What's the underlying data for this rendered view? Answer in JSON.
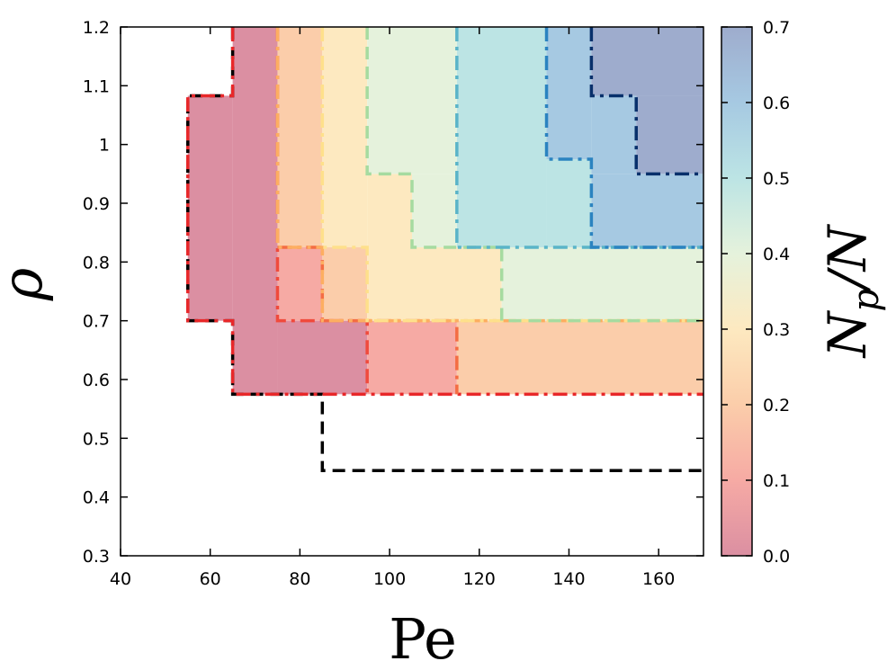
{
  "chart_data": {
    "type": "heatmap",
    "title": "",
    "xlabel": "Pe",
    "ylabel": "ρ",
    "colorbar_label": "N_p/N",
    "colorbar_label_main": "N",
    "colorbar_label_sub": "p",
    "colorbar_label_tail": "/N",
    "xlim": [
      40,
      170
    ],
    "ylim": [
      0.3,
      1.2
    ],
    "xticks": [
      40,
      60,
      80,
      100,
      120,
      140,
      160
    ],
    "xtick_labels": [
      "40",
      "60",
      "80",
      "100",
      "120",
      "140",
      "160"
    ],
    "yticks": [
      0.3,
      0.4,
      0.5,
      0.6,
      0.7,
      0.8,
      0.9,
      1.0,
      1.1,
      1.2
    ],
    "ytick_labels": [
      "0.3",
      "0.4",
      "0.5",
      "0.6",
      "0.7",
      "0.8",
      "0.9",
      "1",
      "1.1",
      "1.2"
    ],
    "clim": [
      0.0,
      0.7
    ],
    "cticks": [
      0.0,
      0.1,
      0.2,
      0.3,
      0.4,
      0.5,
      0.6,
      0.7
    ],
    "ctick_labels": [
      "0.0",
      "0.1",
      "0.2",
      "0.3",
      "0.4",
      "0.5",
      "0.6",
      "0.7"
    ],
    "colormap": [
      "#db8fa2",
      "#f6aaa4",
      "#fbcdaa",
      "#fde9c0",
      "#e5f2dc",
      "#bce4e4",
      "#a6c9e2",
      "#9eaccd"
    ],
    "cells": [
      {
        "x0": 55,
        "x1": 65,
        "y0": 0.7,
        "y1": 1.083,
        "value": 0.0
      },
      {
        "x0": 65,
        "x1": 75,
        "y0": 0.575,
        "y1": 1.2,
        "value": 0.0
      },
      {
        "x0": 75,
        "x1": 95,
        "y0": 0.575,
        "y1": 0.7,
        "value": 0.0
      },
      {
        "x0": 75,
        "x1": 85,
        "y0": 0.7,
        "y1": 0.825,
        "value": 0.1
      },
      {
        "x0": 95,
        "x1": 115,
        "y0": 0.575,
        "y1": 0.7,
        "value": 0.1
      },
      {
        "x0": 75,
        "x1": 85,
        "y0": 0.825,
        "y1": 1.2,
        "value": 0.2
      },
      {
        "x0": 85,
        "x1": 95,
        "y0": 0.7,
        "y1": 0.825,
        "value": 0.2
      },
      {
        "x0": 115,
        "x1": 170,
        "y0": 0.575,
        "y1": 0.7,
        "value": 0.2
      },
      {
        "x0": 85,
        "x1": 95,
        "y0": 0.825,
        "y1": 1.2,
        "value": 0.3
      },
      {
        "x0": 95,
        "x1": 105,
        "y0": 0.825,
        "y1": 0.95,
        "value": 0.3
      },
      {
        "x0": 95,
        "x1": 125,
        "y0": 0.7,
        "y1": 0.825,
        "value": 0.3
      },
      {
        "x0": 95,
        "x1": 115,
        "y0": 0.95,
        "y1": 1.2,
        "value": 0.4
      },
      {
        "x0": 105,
        "x1": 115,
        "y0": 0.825,
        "y1": 0.95,
        "value": 0.4
      },
      {
        "x0": 125,
        "x1": 170,
        "y0": 0.7,
        "y1": 0.825,
        "value": 0.4
      },
      {
        "x0": 115,
        "x1": 135,
        "y0": 0.825,
        "y1": 1.2,
        "value": 0.5
      },
      {
        "x0": 135,
        "x1": 145,
        "y0": 0.825,
        "y1": 0.975,
        "value": 0.5
      },
      {
        "x0": 135,
        "x1": 145,
        "y0": 0.975,
        "y1": 1.2,
        "value": 0.6
      },
      {
        "x0": 145,
        "x1": 170,
        "y0": 0.825,
        "y1": 0.95,
        "value": 0.6
      },
      {
        "x0": 145,
        "x1": 155,
        "y0": 0.95,
        "y1": 1.083,
        "value": 0.6
      },
      {
        "x0": 145,
        "x1": 170,
        "y0": 1.083,
        "y1": 1.2,
        "value": 0.7
      },
      {
        "x0": 155,
        "x1": 170,
        "y0": 0.95,
        "y1": 1.083,
        "value": 0.7
      }
    ],
    "contours": [
      {
        "name": "dashed-black-boundary",
        "color": "#000000",
        "dash": "long-dash",
        "points": [
          [
            65,
            1.2
          ],
          [
            65,
            1.083
          ],
          [
            55,
            1.083
          ],
          [
            55,
            0.7
          ],
          [
            65,
            0.7
          ],
          [
            65,
            0.575
          ],
          [
            85,
            0.575
          ],
          [
            85,
            0.445
          ],
          [
            170,
            0.445
          ]
        ]
      },
      {
        "name": "red-boundary",
        "color": "#e8282a",
        "dash": "dash-dot",
        "points": [
          [
            65,
            1.2
          ],
          [
            65,
            1.083
          ],
          [
            55,
            1.083
          ],
          [
            55,
            0.7
          ],
          [
            65,
            0.7
          ],
          [
            65,
            0.575
          ],
          [
            170,
            0.575
          ]
        ]
      },
      {
        "name": "red-inner-boundary",
        "color": "#f04a3c",
        "dash": "dash-dot",
        "points": [
          [
            75,
            1.2
          ],
          [
            75,
            0.7
          ],
          [
            95,
            0.7
          ],
          [
            95,
            0.575
          ]
        ]
      },
      {
        "name": "orange-red-boundary",
        "color": "#f46d43",
        "dash": "dash-dot",
        "points": [
          [
            75,
            0.825
          ],
          [
            85,
            0.825
          ],
          [
            85,
            0.7
          ],
          [
            115,
            0.7
          ],
          [
            115,
            0.575
          ]
        ]
      },
      {
        "name": "orange-boundary",
        "color": "#fdae61",
        "dash": "dash-dot",
        "points": [
          [
            75,
            1.2
          ],
          [
            75,
            0.825
          ],
          [
            85,
            0.825
          ],
          [
            85,
            0.7
          ],
          [
            170,
            0.7
          ]
        ]
      },
      {
        "name": "yellow-boundary",
        "color": "#fee08b",
        "dash": "dash-dot",
        "points": [
          [
            85,
            1.2
          ],
          [
            85,
            0.825
          ],
          [
            95,
            0.825
          ],
          [
            95,
            0.7
          ],
          [
            170,
            0.7
          ]
        ]
      },
      {
        "name": "green-boundary",
        "color": "#a6dba0",
        "dash": "long-dash",
        "points": [
          [
            95,
            1.2
          ],
          [
            95,
            0.95
          ],
          [
            105,
            0.95
          ],
          [
            105,
            0.825
          ],
          [
            125,
            0.825
          ],
          [
            125,
            0.7
          ],
          [
            170,
            0.7
          ]
        ]
      },
      {
        "name": "teal-boundary",
        "color": "#5ab4c8",
        "dash": "dash-dot",
        "points": [
          [
            115,
            1.2
          ],
          [
            115,
            0.825
          ],
          [
            170,
            0.825
          ]
        ]
      },
      {
        "name": "blue-boundary",
        "color": "#2b83c0",
        "dash": "dash-dot",
        "points": [
          [
            135,
            1.2
          ],
          [
            135,
            0.975
          ],
          [
            145,
            0.975
          ],
          [
            145,
            0.825
          ],
          [
            170,
            0.825
          ]
        ]
      },
      {
        "name": "dark-blue-boundary",
        "color": "#08306b",
        "dash": "dash-dot",
        "points": [
          [
            145,
            1.2
          ],
          [
            145,
            1.083
          ],
          [
            155,
            1.083
          ],
          [
            155,
            0.95
          ],
          [
            170,
            0.95
          ]
        ]
      }
    ]
  }
}
